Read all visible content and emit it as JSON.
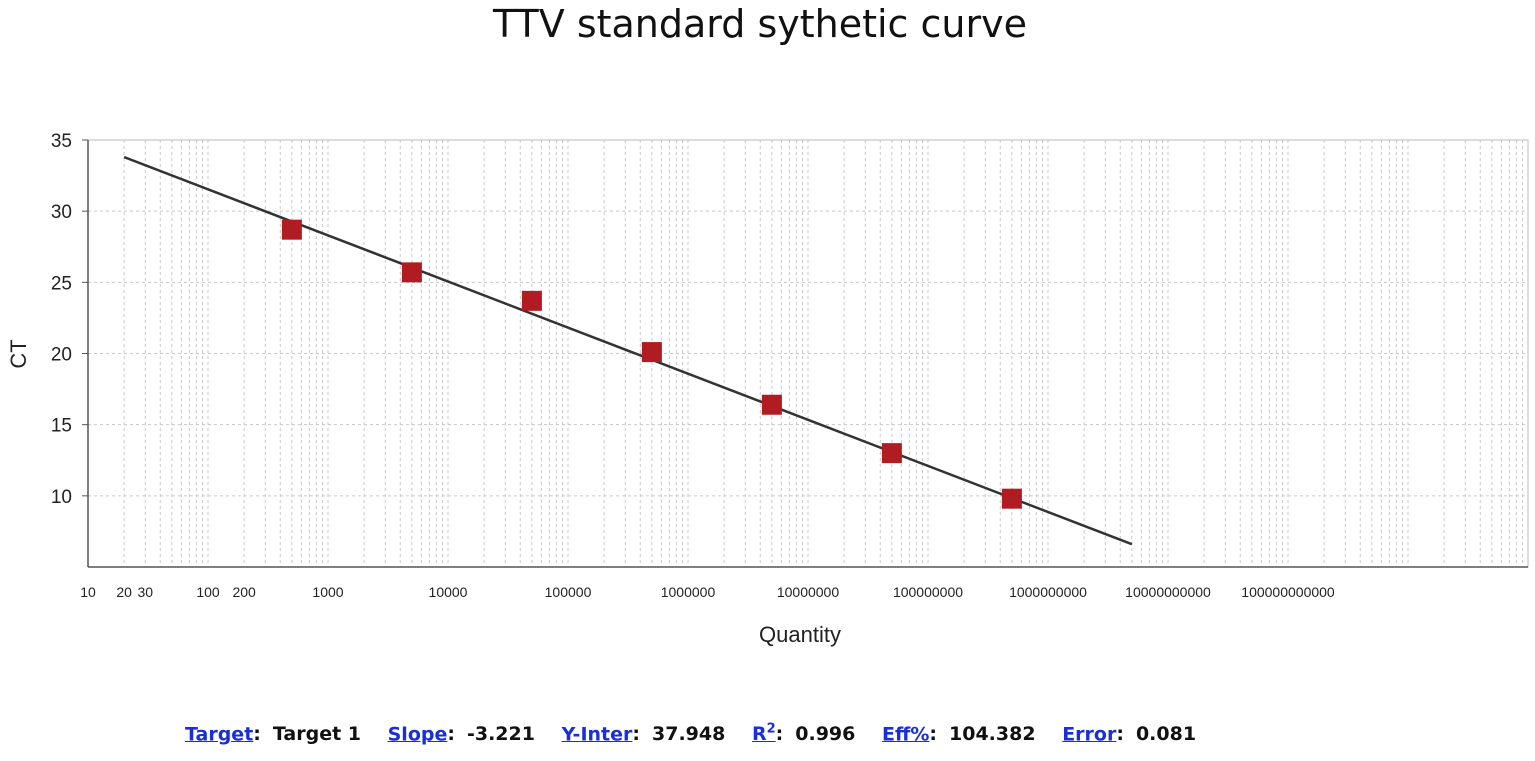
{
  "chart_data": {
    "type": "scatter",
    "title": "TTV standard sythetic curve",
    "xlabel": "Quantity",
    "ylabel": "CT",
    "xscale": "log",
    "xlim": [
      10,
      10000000000000
    ],
    "ylim": [
      5,
      35
    ],
    "x_ticks": [
      {
        "v": 10,
        "label": "10"
      },
      {
        "v": 20,
        "label": "20"
      },
      {
        "v": 30,
        "label": "30"
      },
      {
        "v": 100,
        "label": "100"
      },
      {
        "v": 200,
        "label": "200"
      },
      {
        "v": 1000,
        "label": "1000"
      },
      {
        "v": 10000,
        "label": "10000"
      },
      {
        "v": 100000,
        "label": "100000"
      },
      {
        "v": 1000000,
        "label": "1000000"
      },
      {
        "v": 10000000,
        "label": "10000000"
      },
      {
        "v": 100000000,
        "label": "100000000"
      },
      {
        "v": 1000000000,
        "label": "1000000000"
      },
      {
        "v": 10000000000,
        "label": "10000000000"
      },
      {
        "v": 100000000000,
        "label": "100000000000"
      }
    ],
    "y_ticks": [
      10,
      15,
      20,
      25,
      30,
      35
    ],
    "grid": true,
    "points": [
      {
        "x": 500,
        "y": 28.7
      },
      {
        "x": 5000,
        "y": 25.7
      },
      {
        "x": 50000,
        "y": 23.7
      },
      {
        "x": 500000,
        "y": 20.1
      },
      {
        "x": 5000000,
        "y": 16.4
      },
      {
        "x": 50000000,
        "y": 13.0
      },
      {
        "x": 500000000,
        "y": 9.8
      }
    ],
    "fit_line": {
      "x": [
        20,
        5000000000
      ],
      "y": [
        33.8,
        6.6
      ]
    },
    "colors": {
      "points": "#b01c22",
      "line": "#333333",
      "grid": "#c8c8c8"
    }
  },
  "stats": {
    "target_label": "Target",
    "target_value": "Target 1",
    "slope_label": "Slope",
    "slope_value": "-3.221",
    "yinter_label": "Y-Inter",
    "yinter_value": "37.948",
    "r2_label": "R",
    "r2_sup": "2",
    "r2_value": "0.996",
    "eff_label": "Eff%",
    "eff_value": "104.382",
    "error_label": "Error",
    "error_value": "0.081"
  }
}
